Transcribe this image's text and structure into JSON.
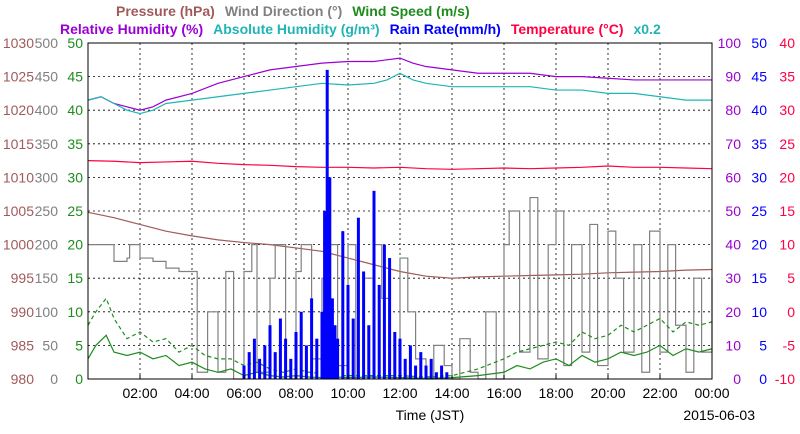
{
  "chart_data": {
    "type": "line",
    "title_rows": [
      [
        {
          "text": "Pressure (hPa)",
          "color": "#a05a5a"
        },
        {
          "text": "Wind Direction (°)",
          "color": "#808080"
        },
        {
          "text": "Wind Speed (m/s)",
          "color": "#1e8c1e"
        }
      ],
      [
        {
          "text": "Relative Humidity (%)",
          "color": "#9b00d3"
        },
        {
          "text": "Absolute Humidity (g/m³)",
          "color": "#1fb5b5"
        },
        {
          "text": "Rain Rate(mm/h)",
          "color": "#0000ff"
        },
        {
          "text": "Temperature (°C)",
          "color": "#ff0044"
        },
        {
          "text": "x0.2",
          "color": "#1fb5b5"
        }
      ]
    ],
    "xlabel": "Time (JST)",
    "date": "2015-06-03",
    "x_range_hours": [
      0,
      24
    ],
    "x_ticks": [
      {
        "h": 2,
        "label": "02:00"
      },
      {
        "h": 4,
        "label": "04:00"
      },
      {
        "h": 6,
        "label": "06:00"
      },
      {
        "h": 8,
        "label": "08:00"
      },
      {
        "h": 10,
        "label": "10:00"
      },
      {
        "h": 12,
        "label": "12:00"
      },
      {
        "h": 14,
        "label": "14:00"
      },
      {
        "h": 16,
        "label": "16:00"
      },
      {
        "h": 18,
        "label": "18:00"
      },
      {
        "h": 20,
        "label": "20:00"
      },
      {
        "h": 22,
        "label": "22:00"
      },
      {
        "h": 24,
        "label": "00:00"
      }
    ],
    "y_axes": [
      {
        "name": "Pressure (hPa)",
        "side": "left",
        "color": "#a05a5a",
        "range": [
          980,
          1030
        ],
        "ticks": [
          "980",
          "985",
          "990",
          "995",
          "1000",
          "1005",
          "1010",
          "1015",
          "1020",
          "1025",
          "1030"
        ]
      },
      {
        "name": "Wind Direction (°)",
        "side": "left",
        "color": "#808080",
        "range": [
          0,
          500
        ],
        "ticks": [
          "0",
          "50",
          "100",
          "150",
          "200",
          "250",
          "300",
          "350",
          "400",
          "450",
          "500"
        ]
      },
      {
        "name": "Wind Speed (m/s)",
        "side": "left",
        "color": "#1e8c1e",
        "range": [
          0,
          50
        ],
        "ticks": [
          "0",
          "5",
          "10",
          "15",
          "20",
          "25",
          "30",
          "35",
          "40",
          "45",
          "50"
        ]
      },
      {
        "name": "Relative Humidity (%)",
        "side": "right",
        "color": "#9b00d3",
        "range": [
          0,
          100
        ],
        "ticks": [
          "0",
          "10",
          "20",
          "30",
          "40",
          "50",
          "60",
          "70",
          "80",
          "90",
          "100"
        ]
      },
      {
        "name": "Rain Rate(mm/h)",
        "side": "right",
        "color": "#0000ff",
        "range": [
          0,
          50
        ],
        "ticks": [
          "0",
          "5",
          "10",
          "15",
          "20",
          "25",
          "30",
          "35",
          "40",
          "45",
          "50"
        ]
      },
      {
        "name": "Temperature (°C)",
        "side": "right",
        "color": "#ff0044",
        "range": [
          -10,
          40
        ],
        "ticks": [
          "-10",
          "-5",
          "0",
          "5",
          "10",
          "15",
          "20",
          "25",
          "30",
          "35",
          "40"
        ]
      }
    ],
    "grid": true,
    "series": [
      {
        "name": "Relative Humidity (%)",
        "color": "#9b00d3",
        "axis": "Relative Humidity (%)",
        "style": "line",
        "x": [
          0,
          0.5,
          1,
          1.5,
          2,
          2.5,
          3,
          4,
          5,
          6,
          7,
          8,
          9,
          10,
          11,
          11.5,
          12,
          12.5,
          13,
          14,
          15,
          16,
          17,
          18,
          19,
          20,
          21,
          22,
          23,
          24
        ],
        "y": [
          83,
          84,
          82,
          81,
          80,
          81,
          83,
          85,
          88,
          90,
          92,
          93,
          94,
          94.5,
          94.5,
          95,
          95.5,
          94,
          93,
          92,
          91,
          91,
          91,
          90,
          90,
          89.5,
          89,
          89,
          89,
          89
        ]
      },
      {
        "name": "Absolute Humidity (g/m³)",
        "color": "#1fb5b5",
        "axis": "Relative Humidity (%)",
        "style": "line",
        "x": [
          0,
          0.5,
          1,
          1.5,
          2,
          2.5,
          3,
          4,
          5,
          6,
          7,
          8,
          9,
          10,
          11,
          11.5,
          12,
          12.5,
          13,
          14,
          15,
          16,
          17,
          18,
          19,
          20,
          21,
          22,
          23,
          24
        ],
        "y": [
          83,
          84,
          82,
          80,
          79,
          80,
          82,
          83,
          84,
          85,
          86,
          87,
          88,
          87.5,
          88,
          89,
          91,
          89,
          88,
          87,
          87,
          87,
          87,
          86,
          86,
          85,
          85,
          84,
          83,
          83
        ]
      },
      {
        "name": "Temperature (°C)",
        "color": "#ff0044",
        "axis": "Temperature (°C)",
        "style": "line",
        "x": [
          0,
          1,
          2,
          3,
          4,
          5,
          6,
          7,
          8,
          9,
          10,
          11,
          12,
          13,
          14,
          15,
          16,
          17,
          18,
          19,
          20,
          21,
          22,
          23,
          24
        ],
        "y": [
          22.5,
          22.4,
          22.2,
          22.3,
          22.4,
          22.1,
          21.9,
          21.8,
          21.6,
          21.5,
          21.5,
          21.4,
          21.5,
          21.3,
          21.2,
          21.3,
          21.4,
          21.3,
          21.4,
          21.5,
          21.7,
          21.5,
          21.5,
          21.4,
          21.3
        ]
      },
      {
        "name": "Pressure (hPa)",
        "color": "#a05a5a",
        "axis": "Pressure (hPa)",
        "style": "line",
        "x": [
          0,
          1,
          2,
          3,
          4,
          5,
          6,
          7,
          8,
          9,
          10,
          11,
          12,
          13,
          14,
          15,
          16,
          17,
          18,
          19,
          20,
          21,
          22,
          23,
          24
        ],
        "y": [
          1004.8,
          1004.0,
          1003.0,
          1002.0,
          1001.3,
          1000.7,
          1000.3,
          1000.0,
          999.5,
          999.0,
          998.0,
          997.0,
          996.0,
          995.3,
          995.0,
          995.2,
          995.3,
          995.4,
          995.5,
          995.6,
          995.8,
          995.9,
          996.0,
          996.2,
          996.3
        ]
      },
      {
        "name": "Wind Direction (°)",
        "color": "#808080",
        "axis": "Wind Direction (°)",
        "style": "step",
        "x": [
          0,
          0.8,
          1,
          1.5,
          1.6,
          2,
          2.5,
          3,
          3.5,
          4,
          4.2,
          4.6,
          5,
          5.3,
          5.6,
          6,
          6.3,
          6.5,
          7,
          7.2,
          7.6,
          8,
          8.2,
          8.6,
          9,
          9.3,
          9.6,
          10,
          10.3,
          10.6,
          11,
          11.3,
          11.6,
          12,
          12.3,
          12.6,
          13,
          13.3,
          13.7,
          14,
          14.3,
          14.7,
          15,
          15.3,
          15.7,
          16,
          16.2,
          16.6,
          17,
          17.3,
          17.7,
          18,
          18.3,
          18.6,
          19,
          19.3,
          19.6,
          20,
          20.3,
          20.6,
          21,
          21.3,
          21.6,
          22,
          22.3,
          22.6,
          23,
          23.3,
          23.6,
          24
        ],
        "y": [
          200,
          200,
          175,
          180,
          200,
          180,
          175,
          165,
          160,
          160,
          10,
          100,
          10,
          160,
          0,
          160,
          200,
          10,
          150,
          200,
          0,
          160,
          200,
          30,
          150,
          200,
          20,
          200,
          0,
          150,
          200,
          120,
          0,
          180,
          100,
          30,
          0,
          50,
          20,
          0,
          60,
          10,
          0,
          100,
          0,
          200,
          250,
          40,
          270,
          30,
          200,
          250,
          20,
          200,
          40,
          230,
          20,
          220,
          150,
          40,
          200,
          10,
          220,
          40,
          200,
          80,
          10,
          150,
          40,
          150
        ]
      },
      {
        "name": "Wind Speed mean (m/s)",
        "color": "#1e8c1e",
        "axis": "Wind Speed (m/s)",
        "style": "line",
        "x": [
          0,
          0.3,
          0.7,
          1,
          1.5,
          2,
          2.5,
          3,
          3.5,
          4,
          4.5,
          5,
          5.5,
          6,
          6.5,
          7,
          7.5,
          8,
          8.5,
          9,
          9.5,
          10,
          11,
          12,
          13,
          14,
          15,
          16,
          16.5,
          17,
          17.5,
          18,
          18.5,
          19,
          19.5,
          20,
          20.5,
          21,
          21.5,
          22,
          22.5,
          23,
          23.5,
          24
        ],
        "y": [
          3,
          5,
          6.5,
          4,
          3.5,
          4,
          3,
          3.5,
          2,
          2.5,
          1.5,
          1,
          1.5,
          0.5,
          1,
          0.5,
          0.3,
          0.5,
          0.3,
          0.2,
          0.3,
          0.2,
          0.3,
          0.2,
          0.1,
          0.2,
          0.5,
          1,
          2,
          1.5,
          2.5,
          3,
          2,
          3.5,
          2.5,
          3,
          4,
          3.5,
          4,
          5,
          3.5,
          4.5,
          4,
          4.5
        ]
      },
      {
        "name": "Wind Speed gust (m/s)",
        "color": "#1e8c1e",
        "axis": "Wind Speed (m/s)",
        "style": "dash",
        "x": [
          0,
          0.3,
          0.7,
          1,
          1.5,
          2,
          2.5,
          3,
          3.5,
          4,
          4.5,
          5,
          5.5,
          6,
          6.5,
          7,
          7.5,
          8,
          8.5,
          9,
          9.5,
          10,
          11,
          12,
          13,
          14,
          15,
          16,
          16.5,
          17,
          17.5,
          18,
          18.5,
          19,
          19.5,
          20,
          20.5,
          21,
          21.5,
          22,
          22.5,
          23,
          23.5,
          24
        ],
        "y": [
          8,
          10,
          12,
          9,
          6,
          7,
          5.5,
          6,
          4,
          5,
          3.5,
          3,
          3,
          2,
          2.5,
          1.5,
          1,
          1.5,
          1,
          0.8,
          0.5,
          0.5,
          0.5,
          0.5,
          0.3,
          0.5,
          1.5,
          3,
          4,
          4.5,
          5,
          5.5,
          5,
          7,
          6,
          6.5,
          8,
          7,
          8,
          9,
          7,
          8.5,
          8,
          8.5
        ]
      },
      {
        "name": "Rain Rate(mm/h)",
        "color": "#0000ff",
        "axis": "Rain Rate(mm/h)",
        "style": "bar",
        "x": [
          6.0,
          6.2,
          6.4,
          6.6,
          6.8,
          7.0,
          7.2,
          7.4,
          7.6,
          7.8,
          8.0,
          8.2,
          8.4,
          8.6,
          8.8,
          9.0,
          9.1,
          9.2,
          9.3,
          9.4,
          9.5,
          9.6,
          9.8,
          10.0,
          10.2,
          10.4,
          10.6,
          10.8,
          11.0,
          11.2,
          11.4,
          11.6,
          11.8,
          12.0,
          12.2,
          12.4,
          12.6,
          12.8,
          13.0,
          13.2,
          13.4,
          13.6,
          13.8
        ],
        "y": [
          2,
          4,
          6,
          3,
          5,
          8,
          4,
          9,
          6,
          3,
          7,
          10,
          5,
          12,
          6,
          10,
          25,
          46,
          30,
          12,
          8,
          6,
          22,
          14,
          9,
          24,
          16,
          8,
          28,
          14,
          20,
          18,
          7,
          6,
          3,
          5,
          2,
          4,
          2,
          3,
          1,
          2,
          1
        ]
      }
    ]
  }
}
